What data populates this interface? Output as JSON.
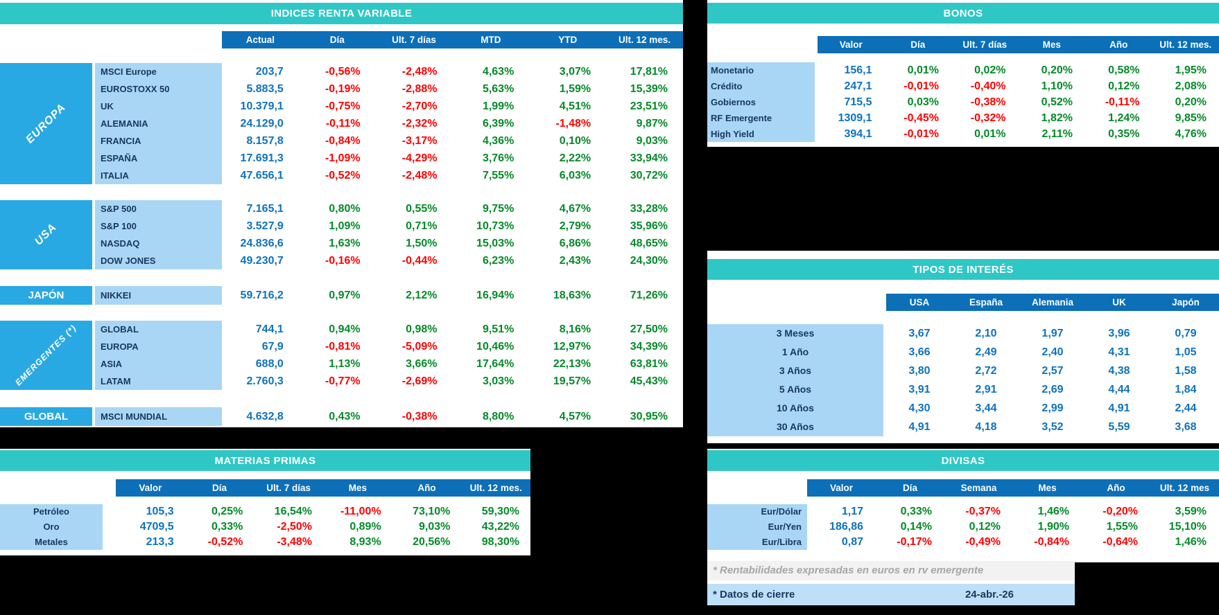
{
  "indices": {
    "title": "INDICES RENTA VARIABLE",
    "columns": [
      "Actual",
      "Día",
      "Ult. 7 días",
      "MTD",
      "YTD",
      "Ult. 12 mes."
    ],
    "groups": [
      {
        "name": "EUROPA",
        "rows": [
          {
            "label": "MSCI Europe",
            "values": [
              "203,7",
              "-0,56%",
              "-2,48%",
              "4,63%",
              "3,07%",
              "17,81%"
            ]
          },
          {
            "label": "EUROSTOXX 50",
            "values": [
              "5.883,5",
              "-0,19%",
              "-2,88%",
              "5,63%",
              "1,59%",
              "15,39%"
            ]
          },
          {
            "label": "UK",
            "values": [
              "10.379,1",
              "-0,75%",
              "-2,70%",
              "1,99%",
              "4,51%",
              "23,51%"
            ]
          },
          {
            "label": "ALEMANIA",
            "values": [
              "24.129,0",
              "-0,11%",
              "-2,32%",
              "6,39%",
              "-1,48%",
              "9,87%"
            ]
          },
          {
            "label": "FRANCIA",
            "values": [
              "8.157,8",
              "-0,84%",
              "-3,17%",
              "4,36%",
              "0,10%",
              "9,03%"
            ]
          },
          {
            "label": "ESPAÑA",
            "values": [
              "17.691,3",
              "-1,09%",
              "-4,29%",
              "3,76%",
              "2,22%",
              "33,94%"
            ]
          },
          {
            "label": "ITALIA",
            "values": [
              "47.656,1",
              "-0,52%",
              "-2,48%",
              "7,55%",
              "6,03%",
              "30,72%"
            ]
          }
        ]
      },
      {
        "name": "USA",
        "rows": [
          {
            "label": "S&P 500",
            "values": [
              "7.165,1",
              "0,80%",
              "0,55%",
              "9,75%",
              "4,67%",
              "33,28%"
            ]
          },
          {
            "label": "S&P 100",
            "values": [
              "3.527,9",
              "1,09%",
              "0,71%",
              "10,73%",
              "2,79%",
              "35,96%"
            ]
          },
          {
            "label": "NASDAQ",
            "values": [
              "24.836,6",
              "1,63%",
              "1,50%",
              "15,03%",
              "6,86%",
              "48,65%"
            ]
          },
          {
            "label": "DOW JONES",
            "values": [
              "49.230,7",
              "-0,16%",
              "-0,44%",
              "6,23%",
              "2,43%",
              "24,30%"
            ]
          }
        ]
      },
      {
        "name": "JAPÓN",
        "rows": [
          {
            "label": "NIKKEI",
            "values": [
              "59.716,2",
              "0,97%",
              "2,12%",
              "16,94%",
              "18,63%",
              "71,26%"
            ]
          }
        ]
      },
      {
        "name": "EMERGENTES (*)",
        "rows": [
          {
            "label": "GLOBAL",
            "values": [
              "744,1",
              "0,94%",
              "0,98%",
              "9,51%",
              "8,16%",
              "27,50%"
            ]
          },
          {
            "label": "EUROPA",
            "values": [
              "67,9",
              "-0,81%",
              "-5,09%",
              "10,46%",
              "12,97%",
              "34,39%"
            ]
          },
          {
            "label": "ASIA",
            "values": [
              "688,0",
              "1,13%",
              "3,66%",
              "17,64%",
              "22,13%",
              "63,81%"
            ]
          },
          {
            "label": "LATAM",
            "values": [
              "2.760,3",
              "-0,77%",
              "-2,69%",
              "3,03%",
              "19,57%",
              "45,43%"
            ]
          }
        ]
      },
      {
        "name": "GLOBAL",
        "rows": [
          {
            "label": "MSCI MUNDIAL",
            "values": [
              "4.632,8",
              "0,43%",
              "-0,38%",
              "8,80%",
              "4,57%",
              "30,95%"
            ]
          }
        ]
      }
    ]
  },
  "bonos": {
    "title": "BONOS",
    "columns": [
      "Valor",
      "Día",
      "Ult. 7 días",
      "Mes",
      "Año",
      "Ult. 12 mes."
    ],
    "rows": [
      {
        "label": "Monetario",
        "values": [
          "156,1",
          "0,01%",
          "0,02%",
          "0,20%",
          "0,58%",
          "1,95%"
        ]
      },
      {
        "label": "Crédito",
        "values": [
          "247,1",
          "-0,01%",
          "-0,40%",
          "1,10%",
          "0,12%",
          "2,08%"
        ]
      },
      {
        "label": "Gobiernos",
        "values": [
          "715,5",
          "0,03%",
          "-0,38%",
          "0,52%",
          "-0,11%",
          "0,20%"
        ]
      },
      {
        "label": "RF Emergente",
        "values": [
          "1309,1",
          "-0,45%",
          "-0,32%",
          "1,82%",
          "1,24%",
          "9,85%"
        ]
      },
      {
        "label": "High Yield",
        "values": [
          "394,1",
          "-0,01%",
          "0,01%",
          "2,11%",
          "0,35%",
          "4,76%"
        ]
      }
    ]
  },
  "tipos": {
    "title": "TIPOS DE INTERÉS",
    "columns": [
      "USA",
      "España",
      "Alemania",
      "UK",
      "Japón"
    ],
    "rows": [
      {
        "label": "3 Meses",
        "values": [
          "3,67",
          "2,10",
          "1,97",
          "3,96",
          "0,79"
        ]
      },
      {
        "label": "1 Año",
        "values": [
          "3,66",
          "2,49",
          "2,40",
          "4,31",
          "1,05"
        ]
      },
      {
        "label": "3 Años",
        "values": [
          "3,80",
          "2,72",
          "2,57",
          "4,38",
          "1,58"
        ]
      },
      {
        "label": "5 Años",
        "values": [
          "3,91",
          "2,91",
          "2,69",
          "4,44",
          "1,84"
        ]
      },
      {
        "label": "10 Años",
        "values": [
          "4,30",
          "3,44",
          "2,99",
          "4,91",
          "2,44"
        ]
      },
      {
        "label": "30 Años",
        "values": [
          "4,91",
          "4,18",
          "3,52",
          "5,59",
          "3,68"
        ]
      }
    ]
  },
  "materias": {
    "title": "MATERIAS PRIMAS",
    "columns": [
      "Valor",
      "Día",
      "Ult. 7 días",
      "Mes",
      "Año",
      "Ult. 12 mes."
    ],
    "rows": [
      {
        "label": "Petróleo",
        "values": [
          "105,3",
          "0,25%",
          "16,54%",
          "-11,00%",
          "73,10%",
          "59,30%"
        ]
      },
      {
        "label": "Oro",
        "values": [
          "4709,5",
          "0,33%",
          "-2,50%",
          "0,89%",
          "9,03%",
          "43,22%"
        ]
      },
      {
        "label": "Metales",
        "values": [
          "213,3",
          "-0,52%",
          "-3,48%",
          "8,93%",
          "20,56%",
          "98,30%"
        ]
      }
    ]
  },
  "divisas": {
    "title": "DIVISAS",
    "columns": [
      "Valor",
      "Día",
      "Semana",
      "Mes",
      "Año",
      "Ult. 12 mes"
    ],
    "rows": [
      {
        "label": "Eur/Dólar",
        "values": [
          "1,17",
          "0,33%",
          "-0,37%",
          "1,46%",
          "-0,20%",
          "3,59%"
        ]
      },
      {
        "label": "Eur/Yen",
        "values": [
          "186,86",
          "0,14%",
          "0,12%",
          "1,90%",
          "1,55%",
          "15,10%"
        ]
      },
      {
        "label": "Eur/Libra",
        "values": [
          "0,87",
          "-0,17%",
          "-0,49%",
          "-0,84%",
          "-0,64%",
          "1,46%"
        ]
      }
    ]
  },
  "footnotes": {
    "emerging_note": "* Rentabilidades expresadas en euros en rv emergente",
    "close_label": "* Datos de cierre",
    "close_date": "24-abr.-26"
  },
  "colors": {
    "teal_header": "#2FC7C6",
    "column_header_blue": "#0C6FB8",
    "value_blue": "#0E72BC",
    "positive_green": "#048A28",
    "negative_red": "#FF0000",
    "group_cell_blue": "#29A9E3",
    "label_cell_light_blue": "#A9D6F5",
    "navy_label_text": "#17375E",
    "note_gray_text": "#A6A6A6",
    "note_blue_bg": "#BDE0F7",
    "background": "#000000"
  }
}
